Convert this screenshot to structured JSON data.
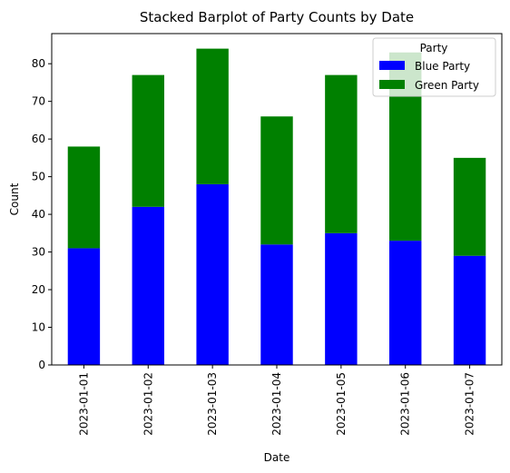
{
  "chart_data": {
    "type": "bar",
    "stacked": true,
    "title": "Stacked Barplot of Party Counts by Date",
    "xlabel": "Date",
    "ylabel": "Count",
    "categories": [
      "2023-01-01",
      "2023-01-02",
      "2023-01-03",
      "2023-01-04",
      "2023-01-05",
      "2023-01-06",
      "2023-01-07"
    ],
    "series": [
      {
        "name": "Blue Party",
        "color": "#0000ff",
        "values": [
          31,
          42,
          48,
          32,
          35,
          33,
          29
        ]
      },
      {
        "name": "Green Party",
        "color": "#008000",
        "values": [
          27,
          35,
          36,
          34,
          42,
          50,
          26
        ]
      }
    ],
    "ylim": [
      0,
      88
    ],
    "yticks": [
      0,
      10,
      20,
      30,
      40,
      50,
      60,
      70,
      80
    ],
    "grid": false,
    "legend": {
      "title": "Party",
      "position": "top-right"
    }
  }
}
